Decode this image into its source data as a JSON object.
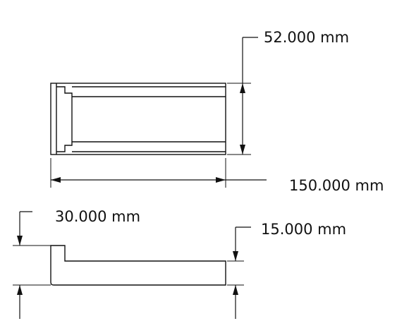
{
  "drawing": {
    "top_view": {
      "dimension_height": "52.000 mm",
      "dimension_length": "150.000 mm"
    },
    "front_view": {
      "dimension_step_height": "30.000 mm",
      "dimension_base_thickness": "15.000 mm"
    }
  }
}
